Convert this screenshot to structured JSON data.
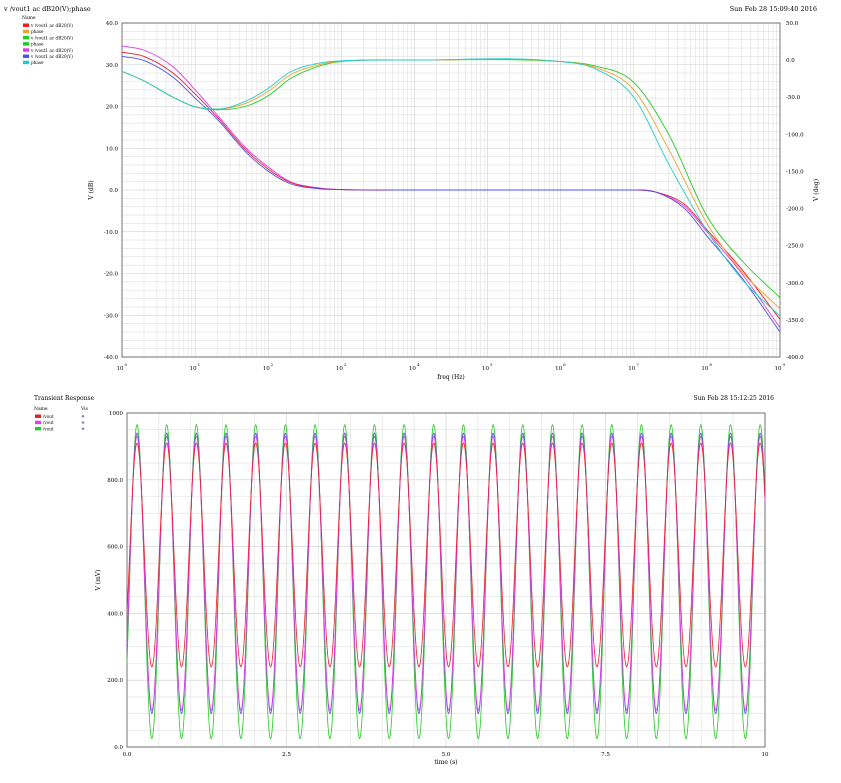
{
  "colors": {
    "red": "#e8212b",
    "orange": "#f0a030",
    "green": "#22cc22",
    "magenta": "#e040e0",
    "blue": "#5050f0",
    "cyan": "#22cccc",
    "grid": "#e0e0e0",
    "grid_major": "#cfcfcf"
  },
  "chart_data": [
    {
      "type": "line",
      "title": "v /vout1 ac dB20(V);phase",
      "timestamp": "Sun Feb 28 15:09:40 2016",
      "legend_header": "Name",
      "legend": [
        {
          "name": "v /vout1 ac dB20(V)",
          "color_key": "red"
        },
        {
          "name": "phase",
          "color_key": "orange"
        },
        {
          "name": "v /vout1 ac dB20(V)",
          "color_key": "green"
        },
        {
          "name": "phase",
          "color_key": "green"
        },
        {
          "name": "v /vout1 ac dB20(V)",
          "color_key": "magenta"
        },
        {
          "name": "v /vout1 ac dB20(V)",
          "color_key": "blue"
        },
        {
          "name": "phase",
          "color_key": "cyan"
        }
      ],
      "xlabel": "freq (Hz)",
      "ylabel": "V (dB)",
      "y2label": "V (deg)",
      "x_scale": "log",
      "xlim": [
        1,
        1000000000
      ],
      "x_tick_exponents": [
        "0",
        "1",
        "2",
        "3",
        "4",
        "5",
        "6",
        "7",
        "8",
        "9"
      ],
      "ylim": [
        -40,
        40
      ],
      "y_ticks": [
        "40.0",
        "30.0",
        "20.0",
        "10.0",
        "0.0",
        "-10.0",
        "-20.0",
        "-30.0",
        "-40.0"
      ],
      "y2lim": [
        -400,
        50
      ],
      "y2_ticks": [
        "50.0",
        "0.0",
        "-50.0",
        "-100.0",
        "-150.0",
        "-200.0",
        "-250.0",
        "-300.0",
        "-350.0",
        "-400.0"
      ],
      "grid": true,
      "series": [
        {
          "color_key": "magenta",
          "axis": "left",
          "x": [
            1,
            2,
            5,
            10,
            20,
            50,
            100,
            200,
            500,
            1000,
            10000,
            1000000,
            10000000,
            20000000,
            50000000,
            100000000,
            300000000,
            1000000000
          ],
          "values": [
            34.5,
            33.5,
            29.5,
            24,
            18,
            10,
            5.5,
            2,
            0.5,
            0.1,
            0,
            0,
            0,
            -0.5,
            -4,
            -10,
            -20,
            -33
          ]
        },
        {
          "color_key": "red",
          "axis": "left",
          "x": [
            1,
            2,
            5,
            10,
            20,
            50,
            100,
            200,
            500,
            1000,
            10000,
            1000000,
            10000000,
            20000000,
            50000000,
            100000000,
            300000000,
            1000000000
          ],
          "values": [
            33,
            32,
            28,
            23,
            17.5,
            9.5,
            5,
            1.8,
            0.4,
            0.1,
            0,
            0,
            0,
            -0.5,
            -3.5,
            -9.5,
            -19,
            -31
          ]
        },
        {
          "color_key": "blue",
          "axis": "left",
          "x": [
            1,
            2,
            5,
            10,
            20,
            50,
            100,
            200,
            500,
            1000,
            10000,
            1000000,
            10000000,
            20000000,
            50000000,
            100000000,
            300000000,
            1000000000
          ],
          "values": [
            32,
            31,
            27,
            22,
            17,
            9,
            4.5,
            1.5,
            0.3,
            0.1,
            0,
            0,
            0,
            -0.5,
            -4.5,
            -11,
            -21,
            -34
          ]
        },
        {
          "color_key": "green",
          "axis": "right",
          "x": [
            1,
            2,
            5,
            10,
            20,
            50,
            100,
            200,
            500,
            1000,
            10000,
            1000000,
            3000000,
            10000000,
            30000000,
            100000000,
            300000000,
            1000000000
          ],
          "values": [
            -15,
            -28,
            -50,
            -63,
            -67,
            -62,
            -48,
            -25,
            -8,
            -2,
            0,
            -2,
            -8,
            -30,
            -100,
            -210,
            -270,
            -320
          ]
        },
        {
          "color_key": "orange",
          "axis": "right",
          "x": [
            1,
            2,
            5,
            10,
            20,
            50,
            100,
            200,
            500,
            1000,
            10000,
            1000000,
            3000000,
            10000000,
            30000000,
            100000000,
            300000000,
            1000000000
          ],
          "values": [
            -15,
            -28,
            -50,
            -63,
            -66,
            -58,
            -42,
            -20,
            -6,
            -1.5,
            0,
            -2,
            -10,
            -40,
            -120,
            -220,
            -285,
            -335
          ]
        },
        {
          "color_key": "cyan",
          "axis": "right",
          "x": [
            1,
            2,
            5,
            10,
            20,
            50,
            100,
            200,
            500,
            1000,
            10000,
            1000000,
            3000000,
            10000000,
            30000000,
            100000000,
            300000000,
            1000000000
          ],
          "values": [
            -15,
            -28,
            -50,
            -63,
            -66,
            -55,
            -38,
            -16,
            -4,
            -1,
            0,
            -2,
            -12,
            -50,
            -140,
            -230,
            -295,
            -345
          ]
        }
      ]
    },
    {
      "type": "line",
      "title": "Transient Response",
      "timestamp": "Sun Feb 28 15:12:25 2016",
      "legend_header": "Name",
      "legend_header2": "Vis",
      "legend": [
        {
          "name": "/vout",
          "color_key": "red"
        },
        {
          "name": "/vout",
          "color_key": "magenta"
        },
        {
          "name": "/vout",
          "color_key": "green"
        }
      ],
      "xlabel": "time (s)",
      "ylabel": "V (mV)",
      "xlim": [
        0,
        10
      ],
      "x_ticks": [
        "0.0",
        "2.5",
        "5.0",
        "7.5",
        "10"
      ],
      "ylim": [
        0,
        1000
      ],
      "y_ticks": [
        "1000",
        "800.0",
        "600.0",
        "400.0",
        "200.0",
        "0.0"
      ],
      "grid": true,
      "cycles": 21.5,
      "series": [
        {
          "color_key": "green",
          "min": 25,
          "max": 965
        },
        {
          "color_key": "blue",
          "min": 100,
          "max": 940
        },
        {
          "color_key": "magenta",
          "min": 110,
          "max": 930
        },
        {
          "color_key": "red",
          "min": 240,
          "max": 910
        }
      ]
    }
  ]
}
